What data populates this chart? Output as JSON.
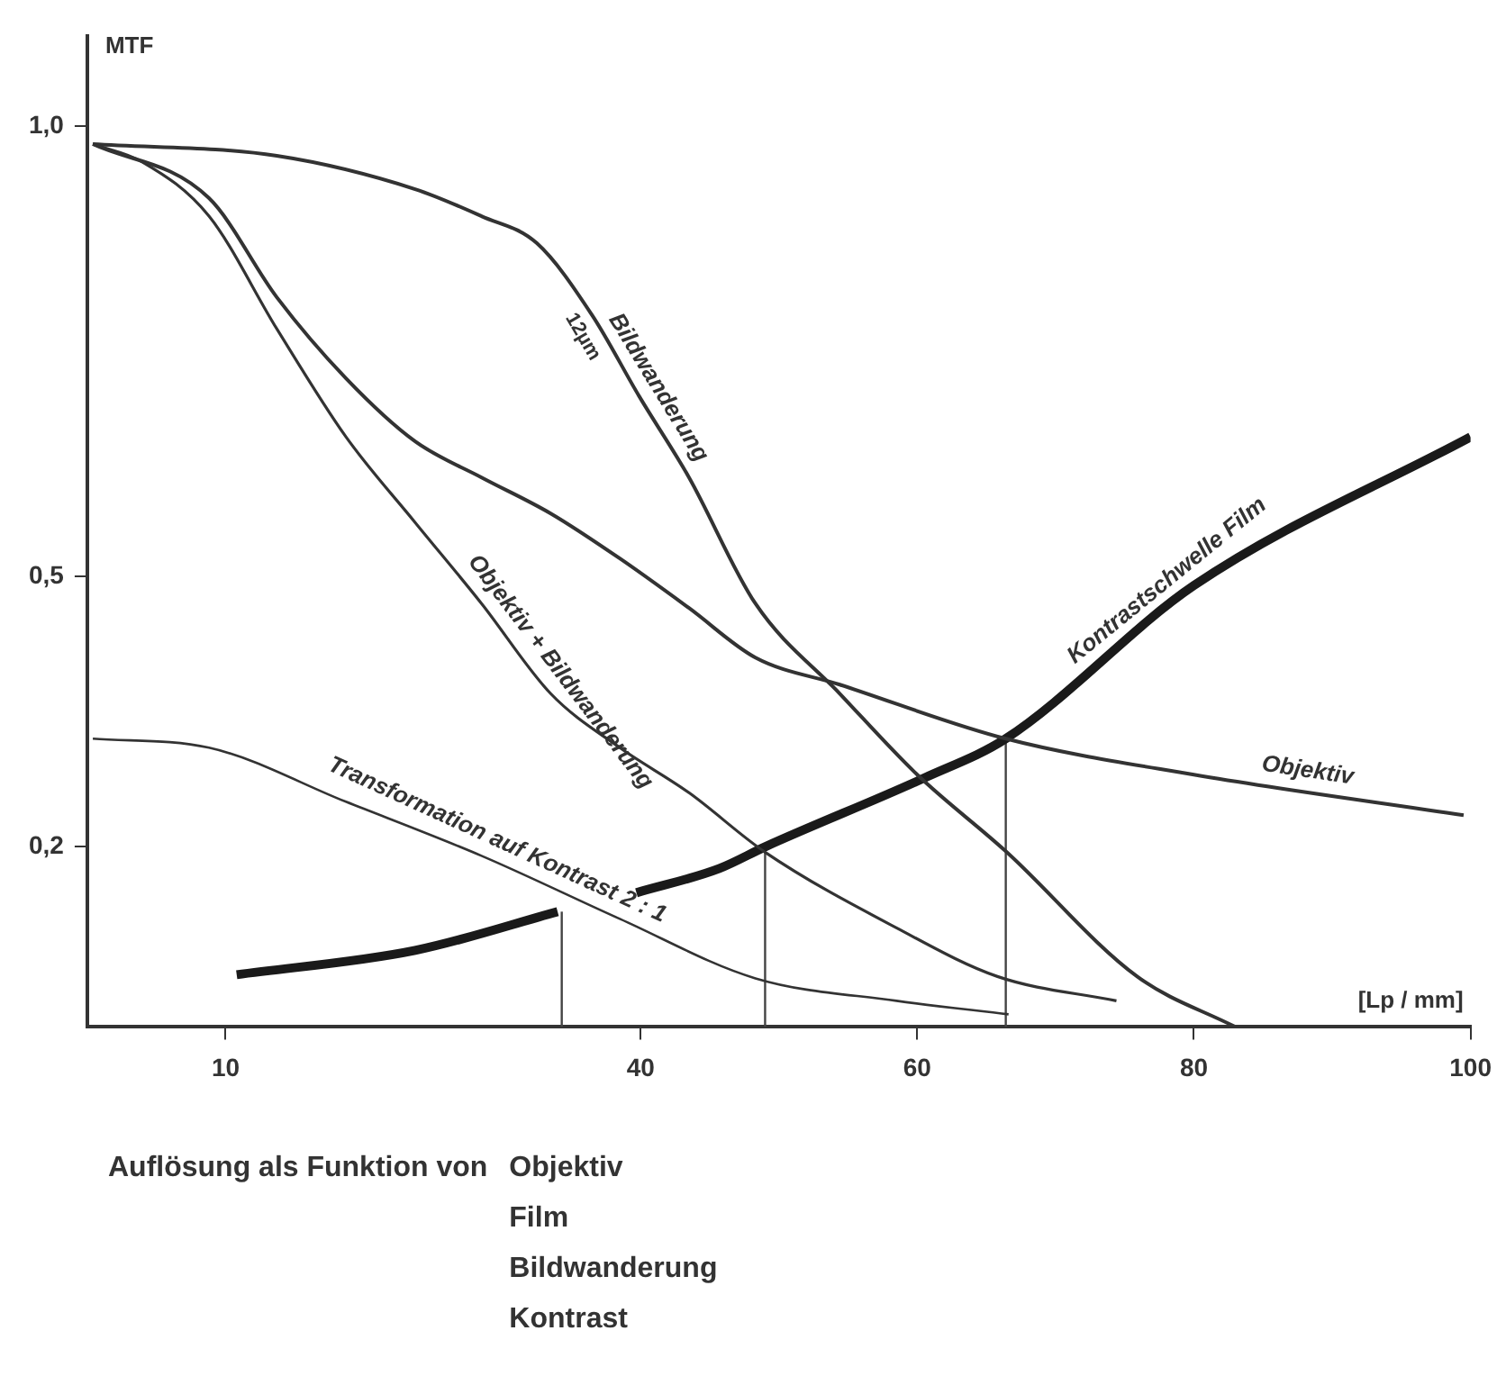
{
  "chart_data": {
    "type": "line",
    "xlabel": "[Lp / mm]",
    "ylabel": "MTF",
    "xlim": [
      0,
      100
    ],
    "ylim": [
      0,
      1.1
    ],
    "xticks": [
      10,
      40,
      60,
      80,
      100
    ],
    "yticks": [
      {
        "value": 1,
        "label": "1,0"
      },
      {
        "value": 0.5,
        "label": "0,5"
      },
      {
        "value": 0.2,
        "label": "0,2"
      }
    ],
    "grid": false,
    "legend": false,
    "marker": "none",
    "line_style": "solid",
    "series": [
      {
        "name": "Objektiv",
        "color": "#333333",
        "x": [
          0.4,
          8.8,
          13.7,
          18.7,
          23.7,
          28.5,
          33.5,
          38.5,
          43.5,
          48.3,
          54.4,
          66.4,
          80,
          99.5
        ],
        "values": [
          0.98,
          0.92,
          0.81,
          0.72,
          0.65,
          0.61,
          0.57,
          0.52,
          0.465,
          0.41,
          0.38,
          0.32,
          0.28,
          0.235
        ]
      },
      {
        "name": "Bildwanderung",
        "color": "#333333",
        "x": [
          0.4,
          13.7,
          23.7,
          28.5,
          32.5,
          36.5,
          39.9,
          43.5,
          48.3,
          54.4,
          60,
          66.4,
          75.9,
          83
        ],
        "values": [
          0.98,
          0.967,
          0.93,
          0.9,
          0.87,
          0.79,
          0.7,
          0.61,
          0.47,
          0.37,
          0.28,
          0.195,
          0.056,
          0
        ]
      },
      {
        "name": "Objektiv + Bildwanderung",
        "color": "#333333",
        "x": [
          0.4,
          4,
          8.8,
          13.7,
          18.7,
          23.7,
          28.5,
          33.5,
          38.5,
          43.5,
          49,
          58.5,
          65.8,
          74.4
        ],
        "values": [
          0.98,
          0.96,
          0.9,
          0.775,
          0.655,
          0.56,
          0.47,
          0.37,
          0.31,
          0.26,
          0.194,
          0.11,
          0.056,
          0.029
        ]
      },
      {
        "name": "Transformation auf Kontrast 2 : 1",
        "color": "#333333",
        "x": [
          0.4,
          8.8,
          18.7,
          28.5,
          38.5,
          48.3,
          58.5,
          66.6
        ],
        "values": [
          0.32,
          0.31,
          0.25,
          0.19,
          0.12,
          0.054,
          0.029,
          0.014
        ]
      },
      {
        "name": "Kontrastschwelle Film",
        "color": "#1a1a1a",
        "x": [
          10.8,
          23.7,
          34,
          37,
          39.7,
          45.7,
          49,
          60.6,
          66.4,
          80,
          100
        ],
        "values": [
          0.058,
          0.085,
          0.128,
          null,
          0.149,
          0.176,
          0.2,
          0.277,
          0.32,
          0.49,
          0.655
        ]
      },
      {
        "color": "#444444",
        "x": [
          34.3,
          34.3
        ],
        "values": [
          0,
          0.128
        ]
      },
      {
        "color": "#444444",
        "x": [
          49,
          49
        ],
        "values": [
          0,
          0.2
        ]
      },
      {
        "color": "#444444",
        "x": [
          66.4,
          66.4
        ],
        "values": [
          0,
          0.32
        ]
      }
    ],
    "annotations": [
      "12µm",
      "Auflösung als Funktion von",
      "Objektiv",
      "Film",
      "Bildwanderung",
      "Kontrast"
    ]
  }
}
